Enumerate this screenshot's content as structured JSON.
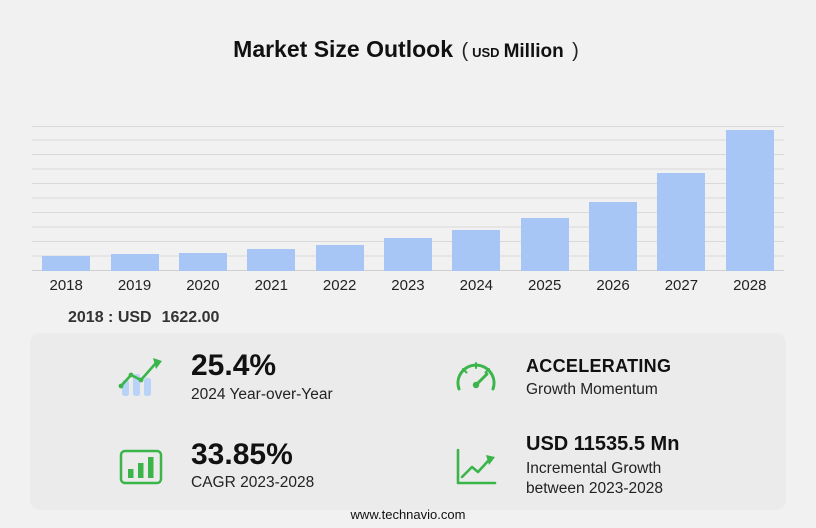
{
  "title": {
    "main": "Market Size Outlook",
    "unit_open": "(",
    "unit_currency": "USD",
    "unit_word": "Million",
    "unit_close": ")"
  },
  "chart_data": {
    "type": "bar",
    "title": "Market Size Outlook (USD Million)",
    "categories": [
      "2018",
      "2019",
      "2020",
      "2021",
      "2022",
      "2023",
      "2024",
      "2025",
      "2026",
      "2027",
      "2028"
    ],
    "values": [
      1622,
      1805,
      1952,
      2300,
      2805,
      3500,
      4389,
      5620,
      7420,
      10510,
      15036
    ],
    "xlabel": "",
    "ylabel": "",
    "ylim": [
      0,
      15500
    ],
    "grid": true,
    "legend": false,
    "bar_color": "#a7c6f6",
    "annotation": "2018 : USD 1622.00"
  },
  "annotation": {
    "label": "2018 : USD",
    "value": "1622.00"
  },
  "stats": [
    {
      "icon": "yoy-bar-growth-icon",
      "value": "25.4%",
      "label": "2024 Year-over-Year"
    },
    {
      "icon": "speedometer-icon",
      "value": "ACCELERATING",
      "label": "Growth Momentum"
    },
    {
      "icon": "cagr-bar-chart-icon",
      "value": "33.85%",
      "label": "CAGR 2023-2028"
    },
    {
      "icon": "incremental-growth-arrow-icon",
      "value": "USD 11535.5 Mn",
      "label": "Incremental Growth between 2023-2028"
    }
  ],
  "footer": {
    "url": "www.technavio.com"
  },
  "colors": {
    "accent_green": "#3bb54a",
    "bar_blue": "#a7c6f6",
    "background": "#f1f1f2",
    "panel": "#ebebec"
  }
}
